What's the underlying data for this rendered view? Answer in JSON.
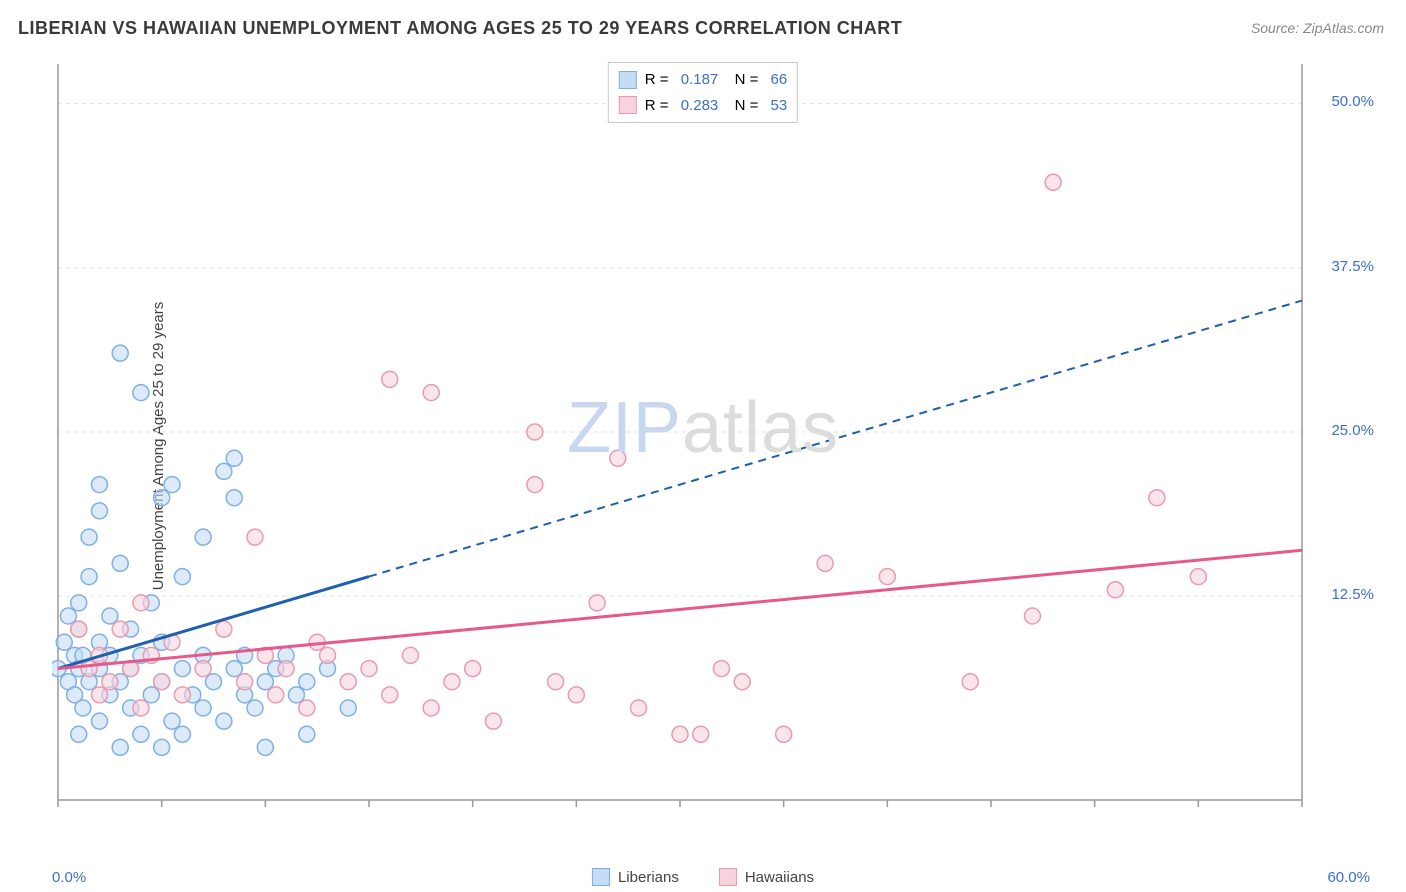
{
  "title": "LIBERIAN VS HAWAIIAN UNEMPLOYMENT AMONG AGES 25 TO 29 YEARS CORRELATION CHART",
  "source": "Source: ZipAtlas.com",
  "y_axis_label": "Unemployment Among Ages 25 to 29 years",
  "watermark_a": "ZIP",
  "watermark_b": "atlas",
  "chart": {
    "type": "scatter",
    "xlim": [
      0,
      60
    ],
    "ylim": [
      -3,
      53
    ],
    "x_origin_label": "0.0%",
    "x_max_label": "60.0%",
    "y_ticks": [
      12.5,
      25.0,
      37.5,
      50.0
    ],
    "y_tick_labels": [
      "12.5%",
      "25.0%",
      "37.5%",
      "50.0%"
    ],
    "x_ticks": [
      0,
      5,
      10,
      15,
      20,
      25,
      30,
      35,
      40,
      45,
      50,
      55,
      60
    ],
    "grid_color": "#e5e5e5",
    "axis_color": "#999999",
    "background": "#ffffff",
    "marker_radius": 8,
    "marker_stroke_width": 1.5,
    "series": [
      {
        "name": "Liberians",
        "fill": "#c4dcf5",
        "stroke": "#7fb0e5",
        "fill_opacity": 0.6,
        "r_value": "0.187",
        "n_value": "66",
        "regression": {
          "x1": 0,
          "y1": 7,
          "x2": 60,
          "y2": 35,
          "color": "#1f5fb0",
          "solid_until_x": 15,
          "width": 3
        },
        "points": [
          [
            0,
            7
          ],
          [
            0.3,
            9
          ],
          [
            0.5,
            6
          ],
          [
            0.5,
            11
          ],
          [
            0.8,
            8
          ],
          [
            0.8,
            5
          ],
          [
            1,
            2
          ],
          [
            1,
            7
          ],
          [
            1,
            10
          ],
          [
            1,
            12
          ],
          [
            1.2,
            4
          ],
          [
            1.2,
            8
          ],
          [
            1.5,
            6
          ],
          [
            1.5,
            14
          ],
          [
            1.5,
            17
          ],
          [
            2,
            3
          ],
          [
            2,
            7
          ],
          [
            2,
            9
          ],
          [
            2,
            19
          ],
          [
            2,
            21
          ],
          [
            2.5,
            5
          ],
          [
            2.5,
            8
          ],
          [
            2.5,
            11
          ],
          [
            3,
            1
          ],
          [
            3,
            6
          ],
          [
            3,
            15
          ],
          [
            3,
            31
          ],
          [
            3.5,
            4
          ],
          [
            3.5,
            7
          ],
          [
            3.5,
            10
          ],
          [
            4,
            2
          ],
          [
            4,
            8
          ],
          [
            4,
            28
          ],
          [
            4.5,
            5
          ],
          [
            4.5,
            12
          ],
          [
            5,
            1
          ],
          [
            5,
            6
          ],
          [
            5,
            9
          ],
          [
            5,
            20
          ],
          [
            5.5,
            3
          ],
          [
            5.5,
            21
          ],
          [
            6,
            2
          ],
          [
            6,
            7
          ],
          [
            6,
            14
          ],
          [
            6.5,
            5
          ],
          [
            7,
            4
          ],
          [
            7,
            8
          ],
          [
            7,
            17
          ],
          [
            7.5,
            6
          ],
          [
            8,
            3
          ],
          [
            8,
            22
          ],
          [
            8.5,
            7
          ],
          [
            8.5,
            20
          ],
          [
            8.5,
            23
          ],
          [
            9,
            5
          ],
          [
            9,
            8
          ],
          [
            9.5,
            4
          ],
          [
            10,
            6
          ],
          [
            10,
            1
          ],
          [
            10.5,
            7
          ],
          [
            11,
            8
          ],
          [
            11.5,
            5
          ],
          [
            12,
            6
          ],
          [
            12,
            2
          ],
          [
            13,
            7
          ],
          [
            14,
            4
          ]
        ]
      },
      {
        "name": "Hawaiians",
        "fill": "#f7d3dd",
        "stroke": "#e99ab2",
        "fill_opacity": 0.6,
        "r_value": "0.283",
        "n_value": "53",
        "regression": {
          "x1": 0,
          "y1": 7,
          "x2": 60,
          "y2": 16,
          "color": "#e55a8a",
          "solid_until_x": 60,
          "width": 3
        },
        "points": [
          [
            1,
            10
          ],
          [
            1.5,
            7
          ],
          [
            2,
            5
          ],
          [
            2,
            8
          ],
          [
            2.5,
            6
          ],
          [
            3,
            10
          ],
          [
            3.5,
            7
          ],
          [
            4,
            4
          ],
          [
            4,
            12
          ],
          [
            4.5,
            8
          ],
          [
            5,
            6
          ],
          [
            5.5,
            9
          ],
          [
            6,
            5
          ],
          [
            7,
            7
          ],
          [
            8,
            10
          ],
          [
            9,
            6
          ],
          [
            9.5,
            17
          ],
          [
            10,
            8
          ],
          [
            10.5,
            5
          ],
          [
            11,
            7
          ],
          [
            12,
            4
          ],
          [
            12.5,
            9
          ],
          [
            13,
            8
          ],
          [
            14,
            6
          ],
          [
            15,
            7
          ],
          [
            16,
            5
          ],
          [
            16,
            29
          ],
          [
            17,
            8
          ],
          [
            18,
            4
          ],
          [
            18,
            28
          ],
          [
            19,
            6
          ],
          [
            20,
            7
          ],
          [
            21,
            3
          ],
          [
            23,
            25
          ],
          [
            23,
            21
          ],
          [
            24,
            6
          ],
          [
            25,
            5
          ],
          [
            26,
            12
          ],
          [
            27,
            23
          ],
          [
            28,
            4
          ],
          [
            30,
            2
          ],
          [
            31,
            2
          ],
          [
            32,
            7
          ],
          [
            33,
            6
          ],
          [
            35,
            2
          ],
          [
            37,
            15
          ],
          [
            40,
            14
          ],
          [
            44,
            6
          ],
          [
            47,
            11
          ],
          [
            48,
            44
          ],
          [
            51,
            13
          ],
          [
            53,
            20
          ],
          [
            55,
            14
          ]
        ]
      }
    ],
    "legend_bottom": [
      {
        "label": "Liberians",
        "fill": "#c4dcf5",
        "stroke": "#7fb0e5"
      },
      {
        "label": "Hawaiians",
        "fill": "#f7d3dd",
        "stroke": "#e99ab2"
      }
    ]
  }
}
